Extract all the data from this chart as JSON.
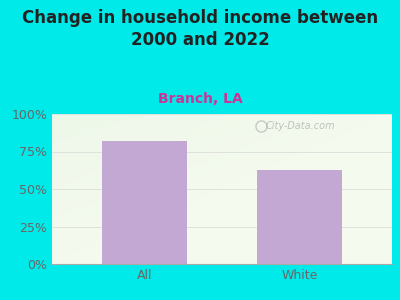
{
  "title": "Change in household income between\n2000 and 2022",
  "subtitle": "Branch, LA",
  "categories": [
    "All",
    "White"
  ],
  "values": [
    82,
    63
  ],
  "bar_color": "#c4a8d4",
  "background_color": "#00eaea",
  "yticks": [
    0,
    25,
    50,
    75,
    100
  ],
  "ytick_labels": [
    "0%",
    "25%",
    "50%",
    "75%",
    "100%"
  ],
  "title_fontsize": 12,
  "title_color": "#222222",
  "subtitle_fontsize": 10,
  "subtitle_color": "#cc3399",
  "tick_label_color": "#666666",
  "tick_label_fontsize": 9,
  "xtick_label_fontsize": 9,
  "watermark": "City-Data.com",
  "plot_bg_color": "#f4faee",
  "grid_color": "#dddddd"
}
